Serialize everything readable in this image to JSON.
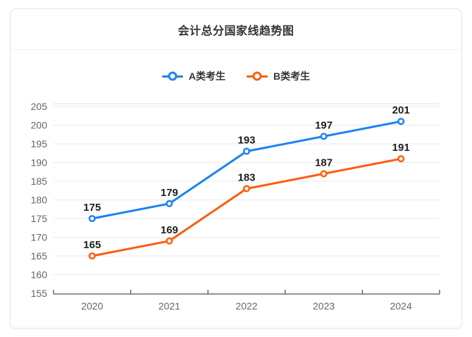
{
  "header": {
    "title": "会计总分国家线趋势图"
  },
  "chart_data": {
    "type": "line",
    "title": "会计总分国家线趋势图",
    "categories": [
      "2020",
      "2021",
      "2022",
      "2023",
      "2024"
    ],
    "series": [
      {
        "name": "A类考生",
        "values": [
          175,
          179,
          193,
          197,
          201
        ],
        "color": "#1e82f0"
      },
      {
        "name": "B类考生",
        "values": [
          165,
          169,
          183,
          187,
          191
        ],
        "color": "#fa5e0e"
      }
    ],
    "xlabel": "",
    "ylabel": "",
    "ylim": [
      155,
      205
    ],
    "y_interval": 5,
    "grid": true,
    "legend_position": "top",
    "data_labels": true
  },
  "colors": {
    "grid_line": "#e5e9f2",
    "grid_top_line": "#dce1ed",
    "axis_line": "#51555e",
    "axis_label": "#63666f",
    "data_label": "#1f1f1f",
    "text": "#333333",
    "card_border": "#e6e6e6",
    "background": "#ffffff"
  }
}
